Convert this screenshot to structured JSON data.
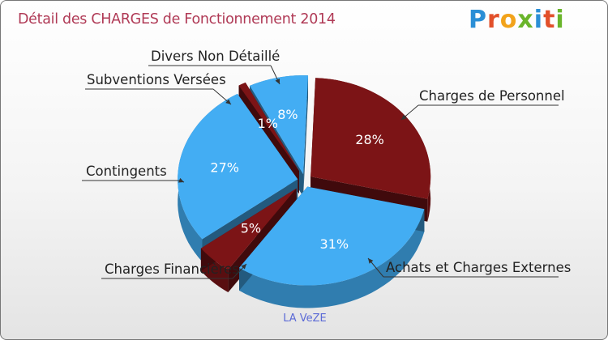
{
  "title": "Détail des CHARGES de Fonctionnement 2014",
  "logo": "Proxiti",
  "commune": "LA VeZE",
  "colors": {
    "red": "#7c1416",
    "blue": "#43adf3",
    "title": "#b03a56"
  },
  "chart_data": {
    "type": "pie",
    "title": "Détail des CHARGES de Fonctionnement 2014",
    "categories": [
      "Charges de Personnel",
      "Achats et Charges Externes",
      "Charges Financières",
      "Contingents",
      "Subventions Versées",
      "Divers Non Détaillé"
    ],
    "values": [
      28,
      31,
      5,
      27,
      1,
      8
    ],
    "labels": [
      "28%",
      "31%",
      "5%",
      "27%",
      "1%",
      "8%"
    ],
    "colors": [
      "#7c1416",
      "#43adf3",
      "#7c1416",
      "#43adf3",
      "#7c1416",
      "#43adf3"
    ]
  }
}
